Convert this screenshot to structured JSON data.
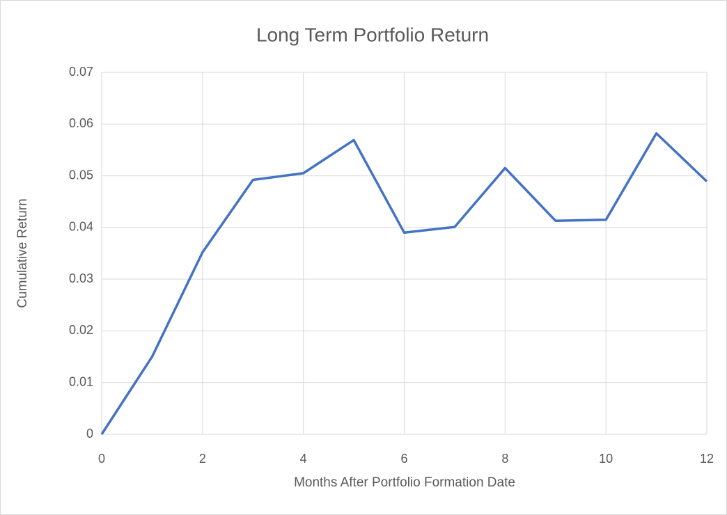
{
  "chart_data": {
    "type": "line",
    "title": "Long Term Portfolio Return",
    "x_label": "Months After Portfolio Formation Date",
    "y_label": "Cumulative Return",
    "x": [
      0,
      1,
      2,
      3,
      4,
      5,
      6,
      7,
      8,
      9,
      10,
      11,
      12
    ],
    "series": [
      {
        "name": "Cumulative Return",
        "color": "#4472c4",
        "values": [
          0,
          0.015,
          0.0352,
          0.0492,
          0.0505,
          0.0569,
          0.039,
          0.0401,
          0.0515,
          0.0413,
          0.0415,
          0.0582,
          0.0489
        ]
      }
    ],
    "xlim": [
      0,
      12
    ],
    "xticks": [
      0,
      2,
      4,
      6,
      8,
      10,
      12
    ],
    "ylim": [
      0,
      0.07
    ],
    "yticks": [
      0,
      0.01,
      0.02,
      0.03,
      0.04,
      0.05,
      0.06,
      0.07
    ],
    "grid": true
  }
}
